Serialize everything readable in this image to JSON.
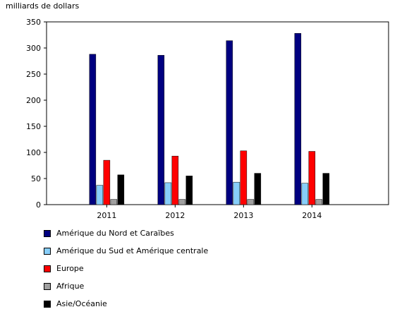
{
  "chart_data": {
    "type": "bar",
    "ylabel": "milliards de dollars",
    "ylim": [
      0,
      350
    ],
    "yticks": [
      0,
      50,
      100,
      150,
      200,
      250,
      300,
      350
    ],
    "categories": [
      "2011",
      "2012",
      "2013",
      "2014"
    ],
    "grid": false,
    "legend_position": "bottom",
    "series": [
      {
        "name": "Amérique du Nord et Caraïbes",
        "color": "#000080",
        "values": [
          288,
          286,
          314,
          328
        ]
      },
      {
        "name": "Amérique du Sud et Amérique centrale",
        "color": "#87CEFA",
        "values": [
          37,
          42,
          43,
          41
        ]
      },
      {
        "name": "Europe",
        "color": "#FF0000",
        "values": [
          85,
          93,
          103,
          102
        ]
      },
      {
        "name": "Afrique",
        "color": "#A0A0A0",
        "values": [
          10,
          10,
          10,
          10
        ]
      },
      {
        "name": "Asie/Océanie",
        "color": "#000000",
        "values": [
          57,
          55,
          60,
          60
        ]
      }
    ]
  }
}
